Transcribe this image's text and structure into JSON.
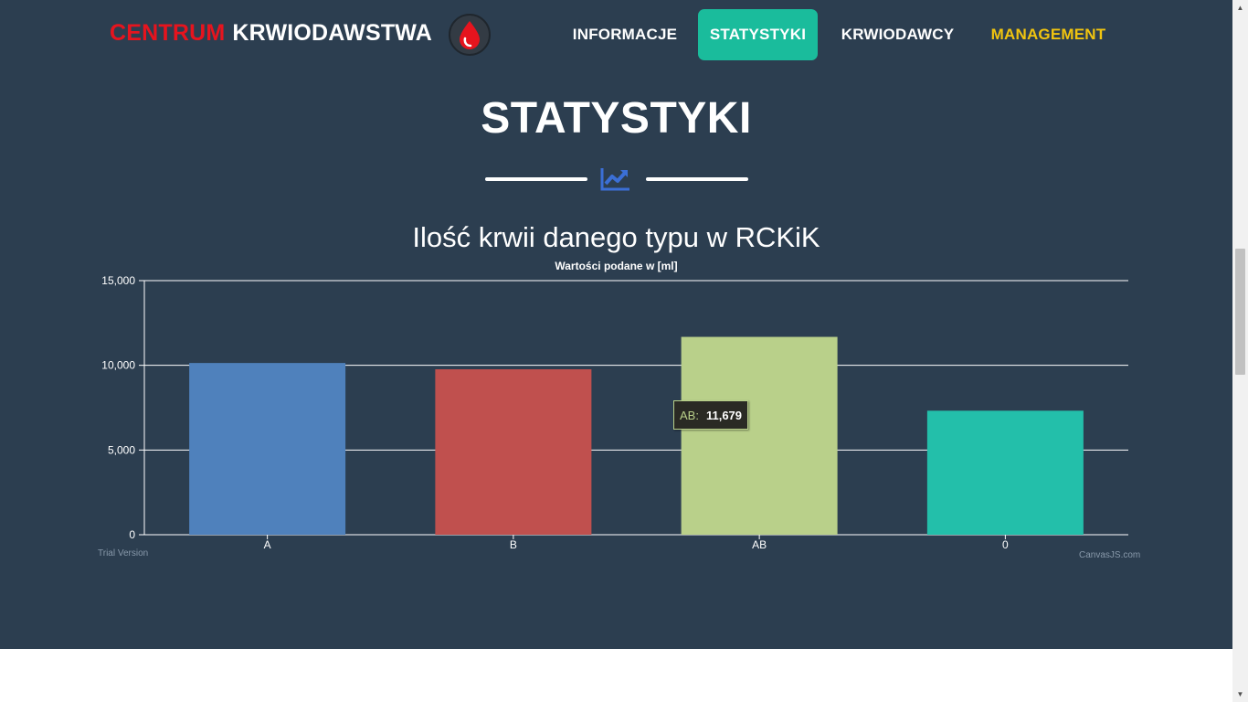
{
  "header": {
    "brand_red": "CENTRUM",
    "brand_white": "KRWIODAWSTWA",
    "logo_icon": "blood-drop-icon",
    "nav": {
      "informacje": "INFORMACJE",
      "statystyki": "STATYSTYKI",
      "krwiodawcy": "KRWIODAWCY",
      "management": "MANAGEMENT"
    }
  },
  "section": {
    "heading": "STATYSTYKI",
    "divider_icon": "chart-line-icon"
  },
  "colors": {
    "background": "#2c3e50",
    "brand_red": "#e6141e",
    "active_nav": "#1abc9c",
    "management": "#f1c40f",
    "divider_icon": "#3b6fd6"
  },
  "chart_data": {
    "type": "bar",
    "title": "Ilość krwii danego typu w RCKiK",
    "subtitle": "Wartości podane w [ml]",
    "categories": [
      "A",
      "B",
      "AB",
      "0"
    ],
    "values": [
      10137,
      9768,
      11679,
      7321
    ],
    "colors": [
      "#4f81bc",
      "#c0504e",
      "#b9d08a",
      "#23bfaa"
    ],
    "ylim": [
      0,
      15000
    ],
    "yticks": [
      0,
      5000,
      10000,
      15000
    ],
    "ytick_labels": [
      "0",
      "5,000",
      "10,000",
      "15,000"
    ],
    "grid": true,
    "tooltip": {
      "label": "AB:",
      "value": "11,679"
    },
    "watermarks": {
      "left": "Trial Version",
      "right": "CanvasJS.com"
    }
  }
}
